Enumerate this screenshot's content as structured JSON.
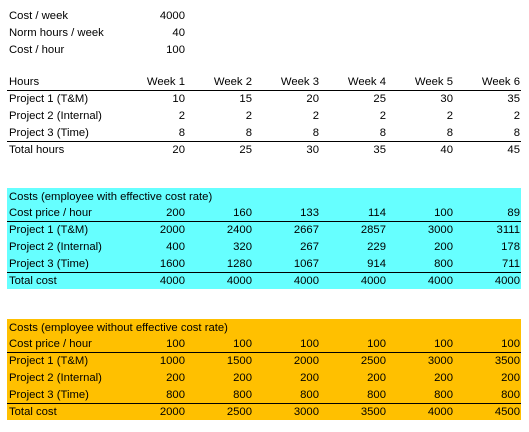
{
  "params": [
    {
      "label": "Cost / week",
      "value": "4000"
    },
    {
      "label": "Norm hours / week",
      "value": "40"
    },
    {
      "label": "Cost / hour",
      "value": "100"
    }
  ],
  "hours": {
    "header": [
      "Hours",
      "Week 1",
      "Week 2",
      "Week 3",
      "Week 4",
      "Week 5",
      "Week 6"
    ],
    "rows": [
      [
        "Project 1 (T&M)",
        "10",
        "15",
        "20",
        "25",
        "30",
        "35"
      ],
      [
        "Project 2 (Internal)",
        "2",
        "2",
        "2",
        "2",
        "2",
        "2"
      ],
      [
        "Project 3 (Time)",
        "8",
        "8",
        "8",
        "8",
        "8",
        "8"
      ]
    ],
    "total": [
      "Total hours",
      "20",
      "25",
      "30",
      "35",
      "40",
      "45"
    ]
  },
  "effective": {
    "title": "Costs (employee with effective cost rate)",
    "price": [
      "Cost price / hour",
      "200",
      "160",
      "133",
      "114",
      "100",
      "89"
    ],
    "rows": [
      [
        "Project 1 (T&M)",
        "2000",
        "2400",
        "2667",
        "2857",
        "3000",
        "3111"
      ],
      [
        "Project 2 (Internal)",
        "400",
        "320",
        "267",
        "229",
        "200",
        "178"
      ],
      [
        "Project 3 (Time)",
        "1600",
        "1280",
        "1067",
        "914",
        "800",
        "711"
      ]
    ],
    "total": [
      "Total cost",
      "4000",
      "4000",
      "4000",
      "4000",
      "4000",
      "4000"
    ],
    "color": "#66ffff"
  },
  "noneffective": {
    "title": "Costs (employee without effective cost rate)",
    "price": [
      "Cost price / hour",
      "100",
      "100",
      "100",
      "100",
      "100",
      "100"
    ],
    "rows": [
      [
        "Project 1 (T&M)",
        "1000",
        "1500",
        "2000",
        "2500",
        "3000",
        "3500"
      ],
      [
        "Project 2 (Internal)",
        "200",
        "200",
        "200",
        "200",
        "200",
        "200"
      ],
      [
        "Project 3 (Time)",
        "800",
        "800",
        "800",
        "800",
        "800",
        "800"
      ]
    ],
    "total": [
      "Total cost",
      "2000",
      "2500",
      "3000",
      "3500",
      "4000",
      "4500"
    ],
    "color": "#ffc000"
  }
}
